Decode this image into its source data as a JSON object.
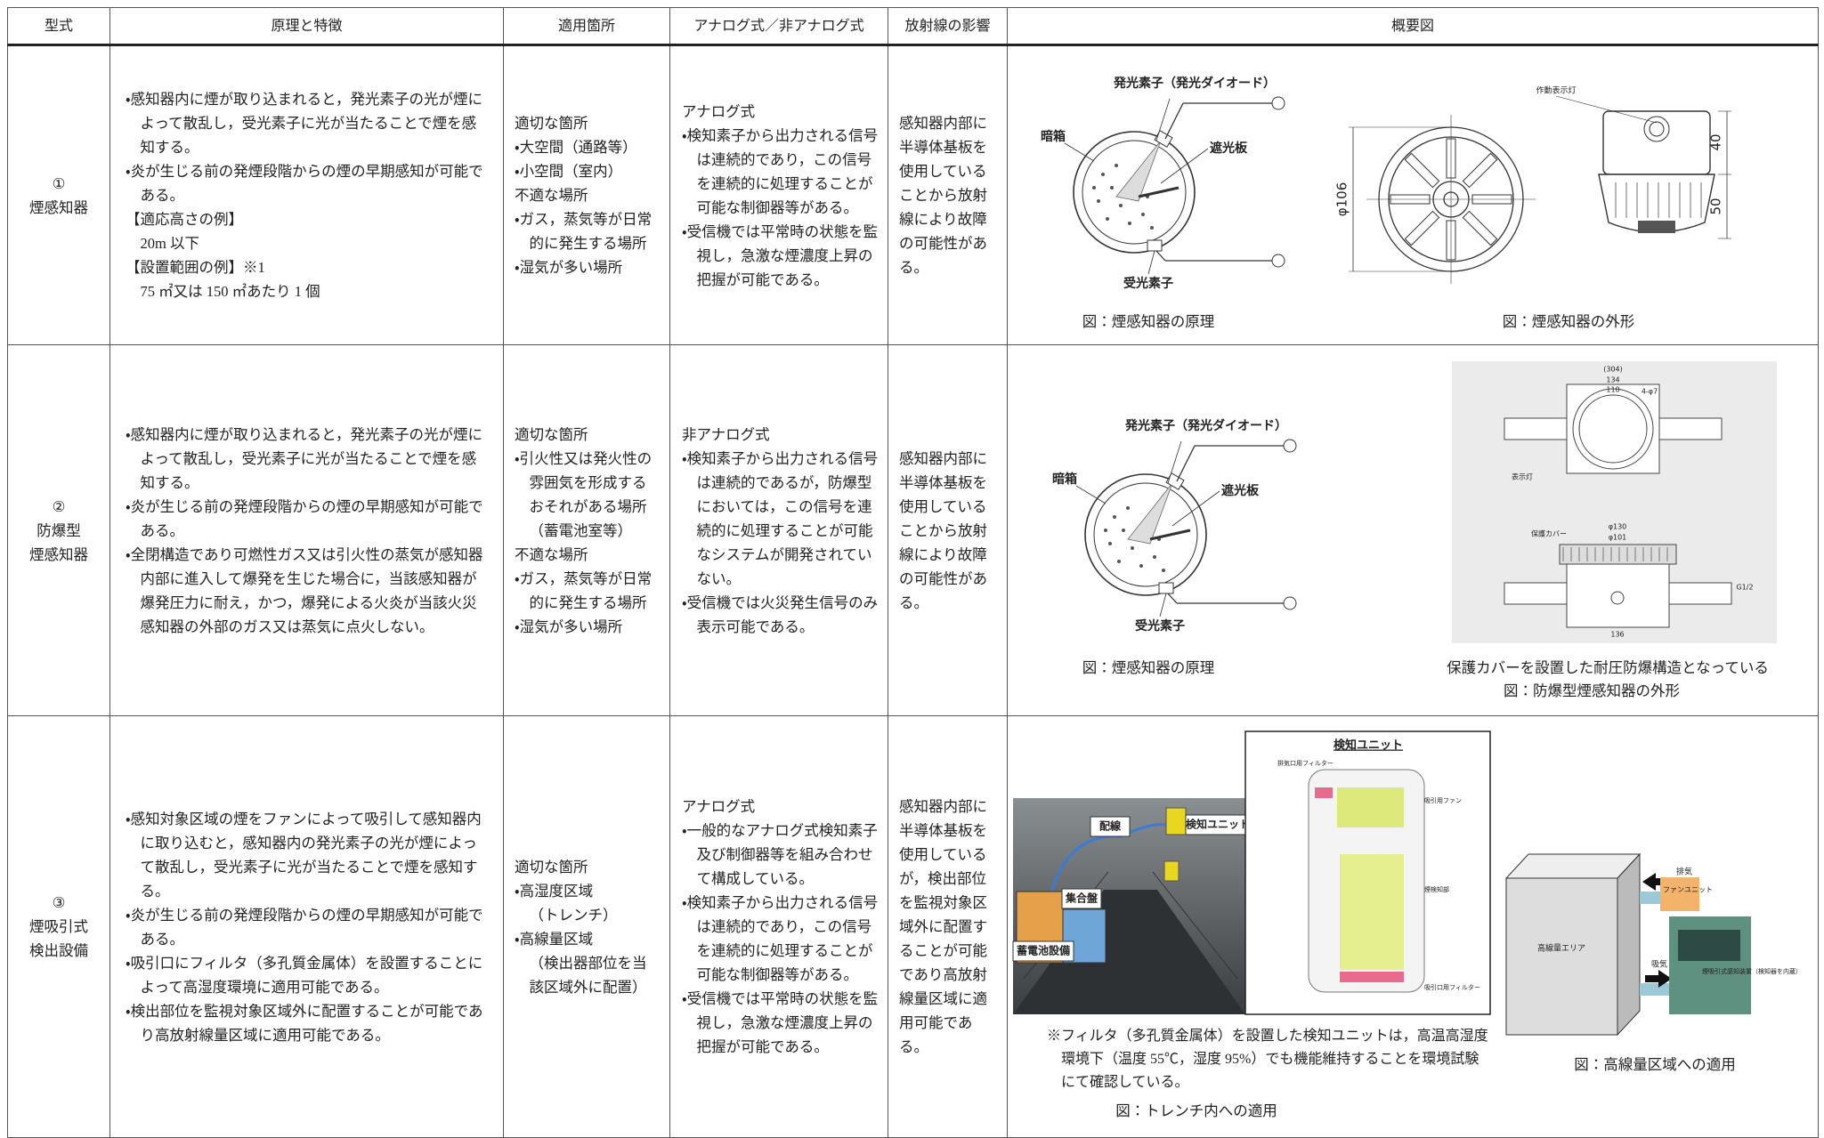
{
  "header": [
    "型式",
    "原理と特徴",
    "適用箇所",
    "アナログ式／非アナログ式",
    "放射線の影響",
    "概要図"
  ],
  "rows": [
    {
      "type": [
        "①",
        "煙感知器"
      ],
      "principle": [
        "・感知器内に煙が取り込まれると，発光素子の光が煙によって散乱し，受光素子に光が当たることで煙を感知する。",
        "・炎が生じる前の発煙段階からの煙の早期感知が可能である。",
        "【適応高さの例】",
        "20m 以下",
        "【設置範囲の例】※1",
        "75 ㎡又は 150 ㎡あたり 1 個"
      ],
      "locations": [
        "適切な箇所",
        "・大空間（通路等）",
        "・小空間（室内）",
        "不適な場所",
        "・ガス，蒸気等が日常的に発生する場所",
        "・湿気が多い場所"
      ],
      "analog": [
        "アナログ式",
        "・検知素子から出力される信号は連続的であり，この信号を連続的に処理することが可能な制御器等がある。",
        "・受信機では平常時の状態を監視し，急激な煙濃度上昇の把握が可能である。"
      ],
      "radiation": "感知器内部に半導体基板を使用していることから放射線により故障の可能性がある。",
      "figures": {
        "principle": {
          "labels": [
            "発光素子（発光ダイオード）",
            "暗箱",
            "遮光板",
            "受光素子"
          ],
          "caption": "図：煙感知器の原理"
        },
        "exterior": {
          "labels": [
            "作動表示灯",
            "40",
            "50",
            "φ106"
          ],
          "caption": "図：煙感知器の外形"
        }
      }
    },
    {
      "type": [
        "②",
        "防爆型",
        "煙感知器"
      ],
      "principle": [
        "・感知器内に煙が取り込まれると，発光素子の光が煙によって散乱し，受光素子に光が当たることで煙を感知する。",
        "・炎が生じる前の発煙段階からの煙の早期感知が可能である。",
        "・全閉構造であり可燃性ガス又は引火性の蒸気が感知器内部に進入して爆発を生じた場合に，当該感知器が爆発圧力に耐え，かつ，爆発による火炎が当該火災感知器の外部のガス又は蒸気に点火しない。"
      ],
      "locations": [
        "適切な箇所",
        "・引火性又は発火性の雰囲気を形成するおそれがある場所（蓄電池室等）",
        "不適な場所",
        "・ガス，蒸気等が日常的に発生する場所",
        "・湿気が多い場所"
      ],
      "analog": [
        "非アナログ式",
        "・検知素子から出力される信号は連続的であるが，防爆型においては，この信号を連続的に処理することが可能なシステムが開発されていない。",
        "・受信機では火災発生信号のみ表示可能である。"
      ],
      "radiation": "感知器内部に半導体基板を使用していることから放射線により故障の可能性がある。",
      "figures": {
        "principle": {
          "labels": [
            "発光素子（発光ダイオード）",
            "暗箱",
            "遮光板",
            "受光素子"
          ],
          "caption": "図：煙感知器の原理"
        },
        "exterior": {
          "labels": [
            "(304)",
            "134",
            "110",
            "4-φ7",
            "表示灯",
            "保護カバー",
            "φ130",
            "φ101",
            "136",
            "G1/2"
          ],
          "note": "保護カバーを設置した耐圧防爆構造となっている",
          "caption": "図：防爆型煙感知器の外形"
        }
      }
    },
    {
      "type": [
        "③",
        "煙吸引式",
        "検出設備"
      ],
      "principle": [
        "・感知対象区域の煙をファンによって吸引して感知器内に取り込むと，感知器内の発光素子の光が煙によって散乱し，受光素子に光が当たることで煙を感知する。",
        "・炎が生じる前の発煙段階からの煙の早期感知が可能である。",
        "・吸引口にフィルタ（多孔質金属体）を設置することによって高湿度環境に適用可能である。",
        "・検出部位を監視対象区域外に配置することが可能であり高放射線量区域に適用可能である。"
      ],
      "locations": [
        "適切な箇所",
        "・高湿度区域",
        "（トレンチ）",
        "・高線量区域",
        "（検出器部位を当該区域外に配置）"
      ],
      "analog": [
        "アナログ式",
        "・一般的なアナログ式検知素子及び制御器等を組み合わせて構成している。",
        "・検知素子から出力される信号は連続的であり，この信号を連続的に処理することが可能な制御器等がある。",
        "・受信機では平常時の状態を監視し，急激な煙濃度上昇の把握が可能である。"
      ],
      "radiation": "感知器内部に半導体基板を使用しているが，検出部位を監視対象区域外に配置することが可能であり高放射線量区域に適用可能である。",
      "figures": {
        "trench": {
          "labels": [
            "配線",
            "検知ユニット",
            "集合盤",
            "蓄電池設備"
          ],
          "unit_title": "検知ユニット",
          "unit_labels": [
            "排気口用フィルター",
            "吸引用ファン",
            "煙検知部",
            "吸引口用フィルター"
          ],
          "note": "※フィルタ（多孔質金属体）を設置した検知ユニットは，高温高湿度環境下（温度 55℃，湿度 95%）でも機能維持することを環境試験にて確認している。",
          "caption": "図：トレンチ内への適用"
        },
        "high_dose": {
          "labels": [
            "高線量エリア",
            "排気",
            "吸気",
            "ファンユニット",
            "煙吸引式感知装置（検知器を内蔵）"
          ],
          "caption": "図：高線量区域への適用"
        }
      }
    }
  ]
}
